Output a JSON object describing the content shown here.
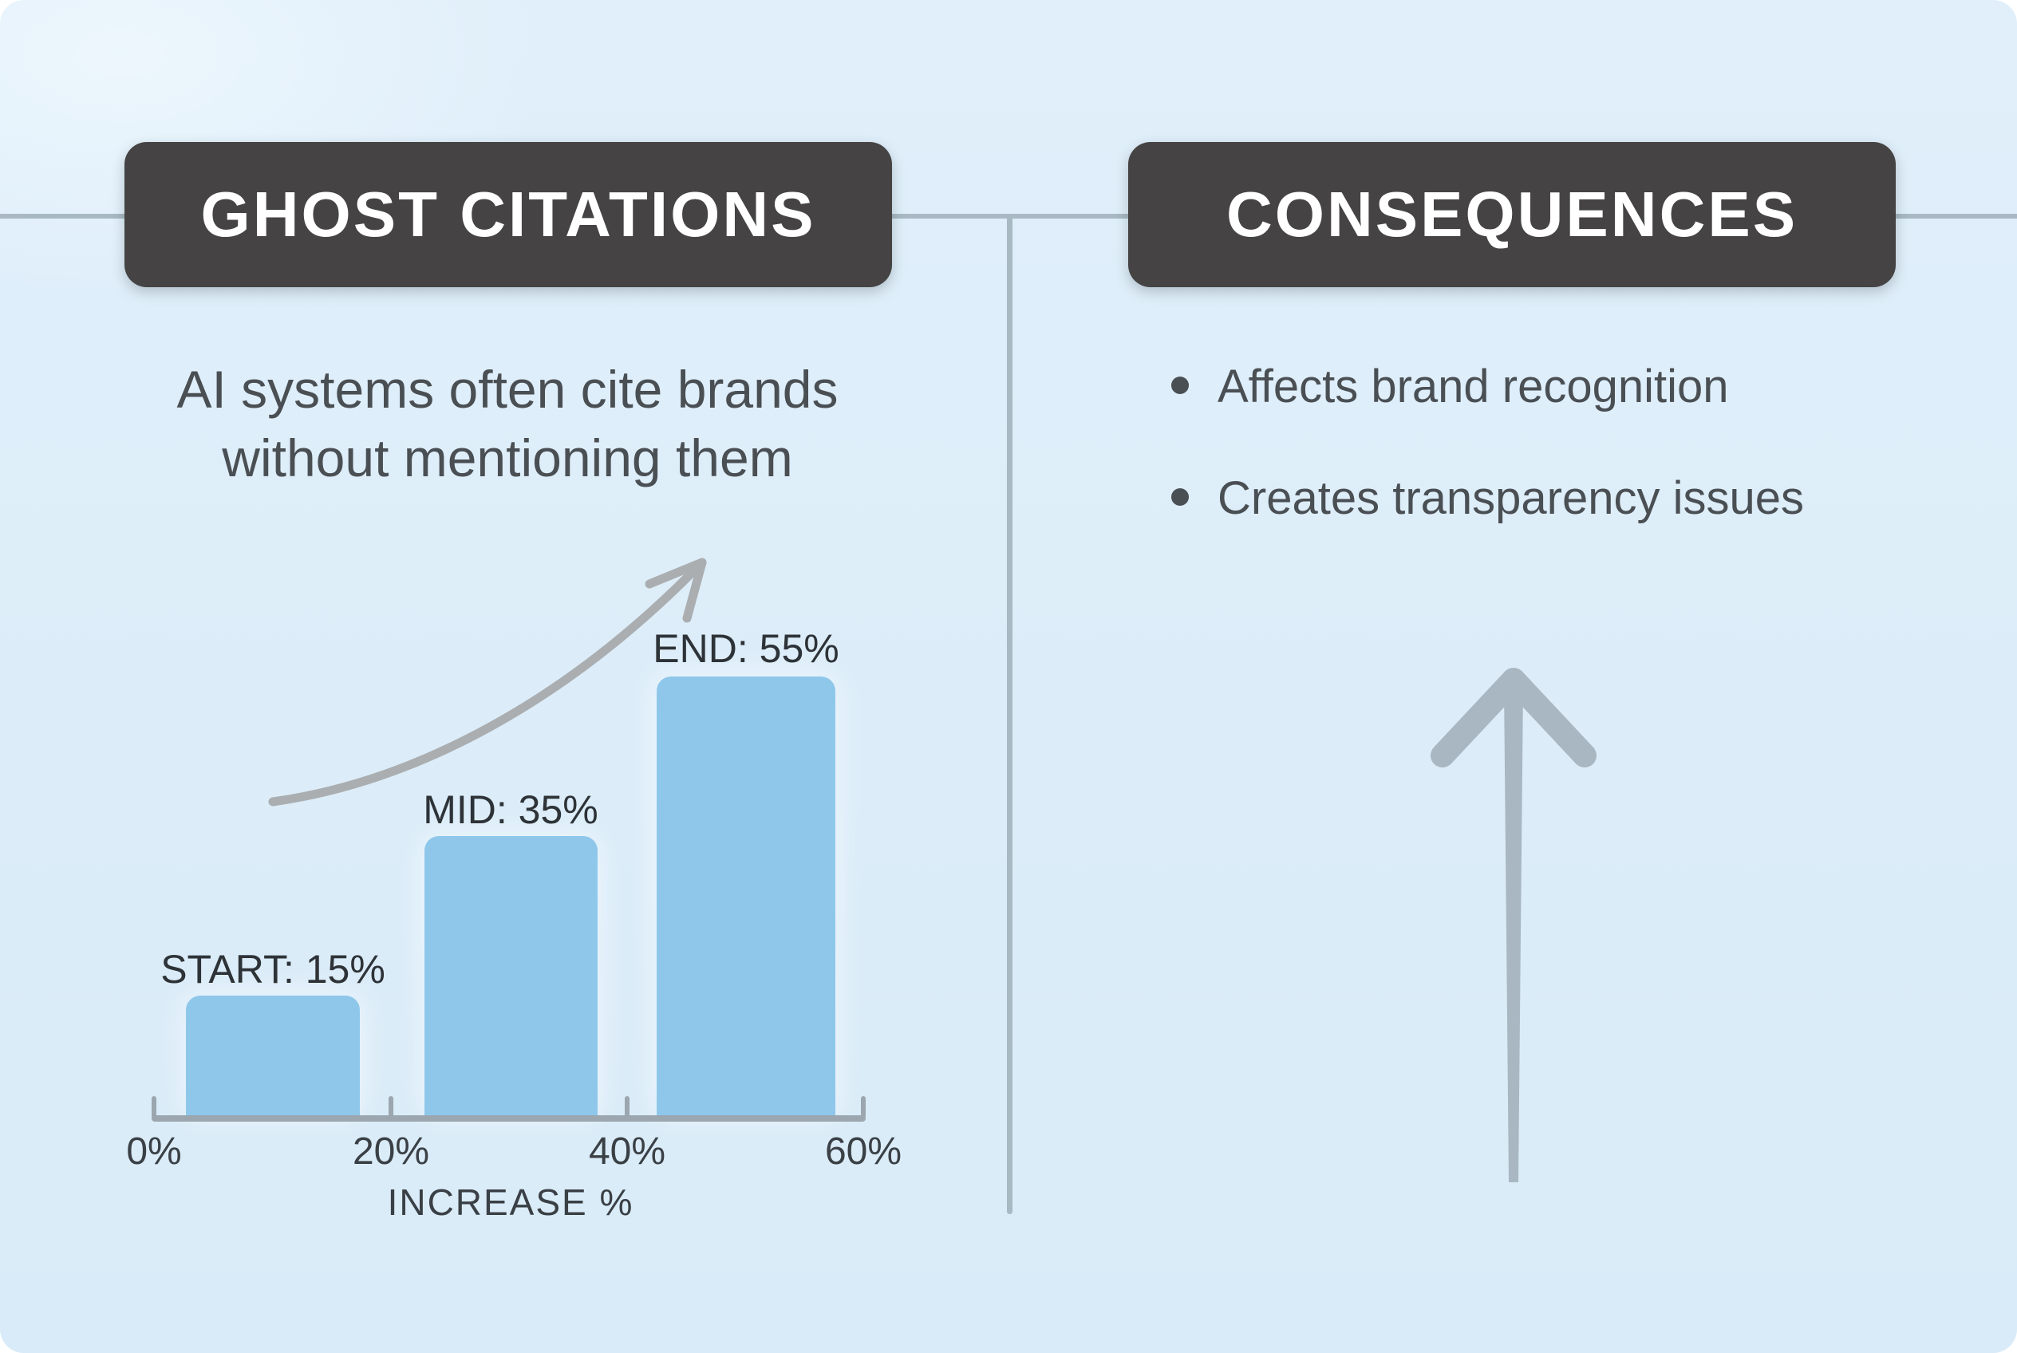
{
  "colors": {
    "card_bg": "#DCEDF9",
    "badge_bg": "#454343",
    "badge_text": "#FFFFFF",
    "body_text": "#4A4F54",
    "divider": "#A8B9C4",
    "big_arrow": "#A9B7C2"
  },
  "left_panel": {
    "title": "GHOST CITATIONS",
    "description": "AI systems often cite brands without mentioning them"
  },
  "right_panel": {
    "title": "CONSEQUENCES",
    "bullets": [
      "Affects brand recognition",
      "Creates transparency issues"
    ]
  },
  "chart_data": {
    "type": "bar",
    "categories": [
      "START",
      "MID",
      "END"
    ],
    "values": [
      15,
      35,
      55
    ],
    "bar_labels": [
      "START: 15%",
      "MID: 35%",
      "END: 55%"
    ],
    "x_tick_labels": [
      "0%",
      "20%",
      "40%",
      "60%"
    ],
    "xlim": [
      0,
      60
    ],
    "xlabel": "INCREASE %",
    "title": "",
    "grid": false,
    "legend": false,
    "bar_color": "#8FC7EB",
    "axis_color": "#9BA6AF",
    "trend_arrow_color": "#ABAEB0",
    "pixels_per_percent": 10,
    "baseline_y": 1398
  }
}
